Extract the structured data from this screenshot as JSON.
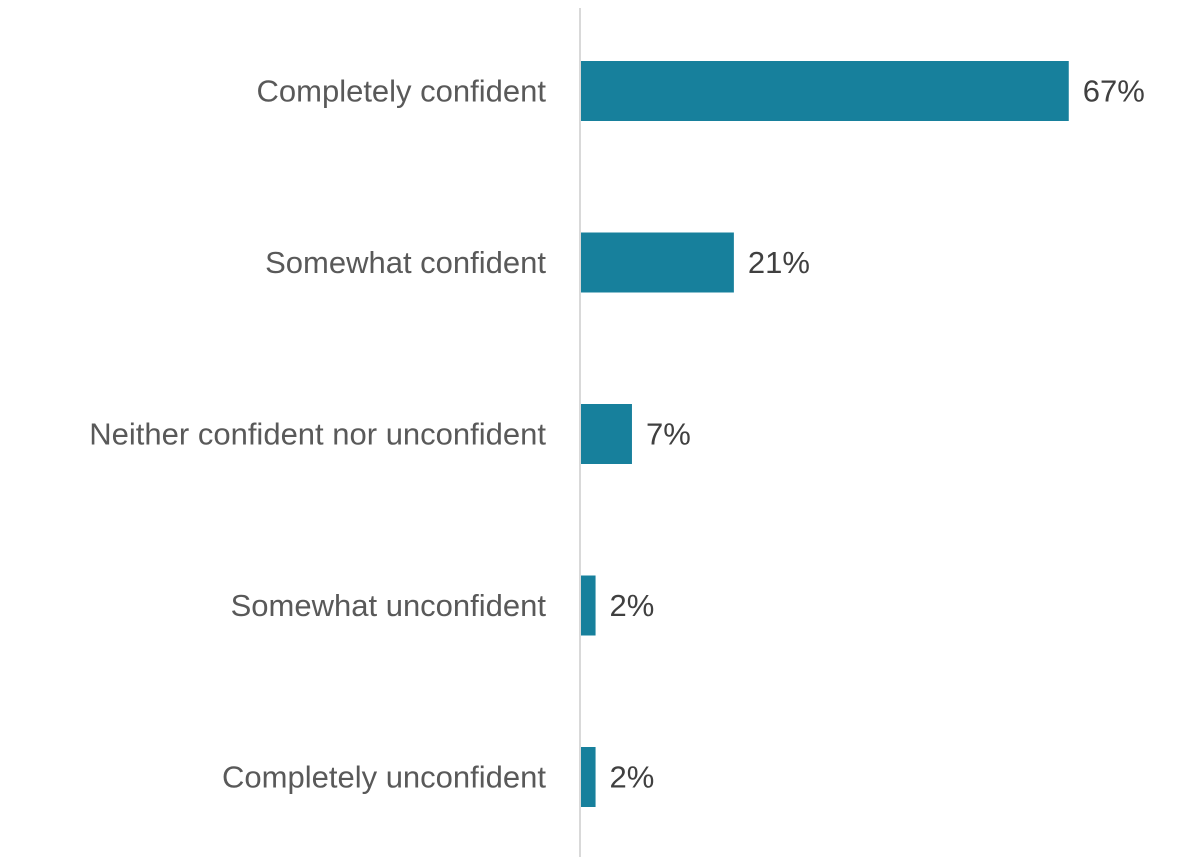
{
  "chart_data": {
    "type": "bar",
    "orientation": "horizontal",
    "categories": [
      "Completely confident",
      "Somewhat confident",
      "Neither confident nor unconfident",
      "Somewhat unconfident",
      "Completely unconfident"
    ],
    "values": [
      67,
      21,
      7,
      2,
      2
    ],
    "value_labels": [
      "67%",
      "21%",
      "7%",
      "2%",
      "2%"
    ],
    "value_unit": "%",
    "xlim": [
      0,
      100
    ],
    "title": "",
    "xlabel": "",
    "ylabel": "",
    "grid": false,
    "legend": "none",
    "colors": {
      "bar": "#17809C",
      "axis": "#D9D9D9",
      "category_text": "#595959",
      "value_text": "#404040"
    }
  }
}
